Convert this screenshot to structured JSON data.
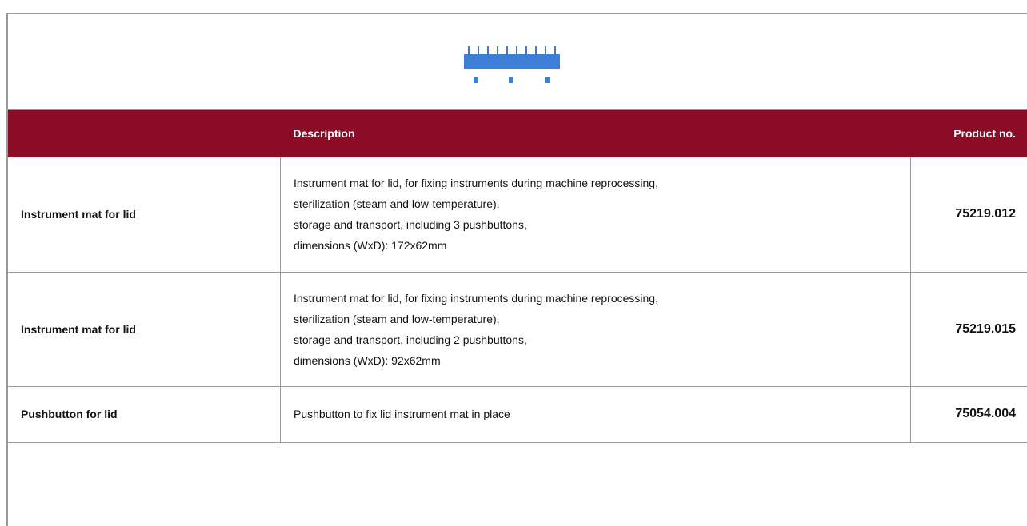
{
  "table": {
    "header": [
      "Description",
      "Product no."
    ],
    "rows": [
      {
        "name": "Instrument mat for lid",
        "description": [
          "Instrument mat for lid, for fixing instruments during machine reprocessing,",
          "sterilization (steam and low-temperature),",
          "storage and transport, including 3 pushbuttons,",
          "dimensions (WxD): 172x62mm"
        ],
        "product_no": "75219.012"
      },
      {
        "name": "Instrument mat for lid",
        "description": [
          "Instrument mat for lid, for fixing instruments during machine reprocessing,",
          "sterilization (steam and low-temperature),",
          "storage and transport, including 2 pushbuttons,",
          "dimensions (WxD): 92x62mm"
        ],
        "product_no": "75219.015"
      },
      {
        "name": "Pushbutton for lid",
        "description": [
          "Pushbutton to fix lid instrument mat in place"
        ],
        "product_no": "75054.004"
      }
    ]
  }
}
